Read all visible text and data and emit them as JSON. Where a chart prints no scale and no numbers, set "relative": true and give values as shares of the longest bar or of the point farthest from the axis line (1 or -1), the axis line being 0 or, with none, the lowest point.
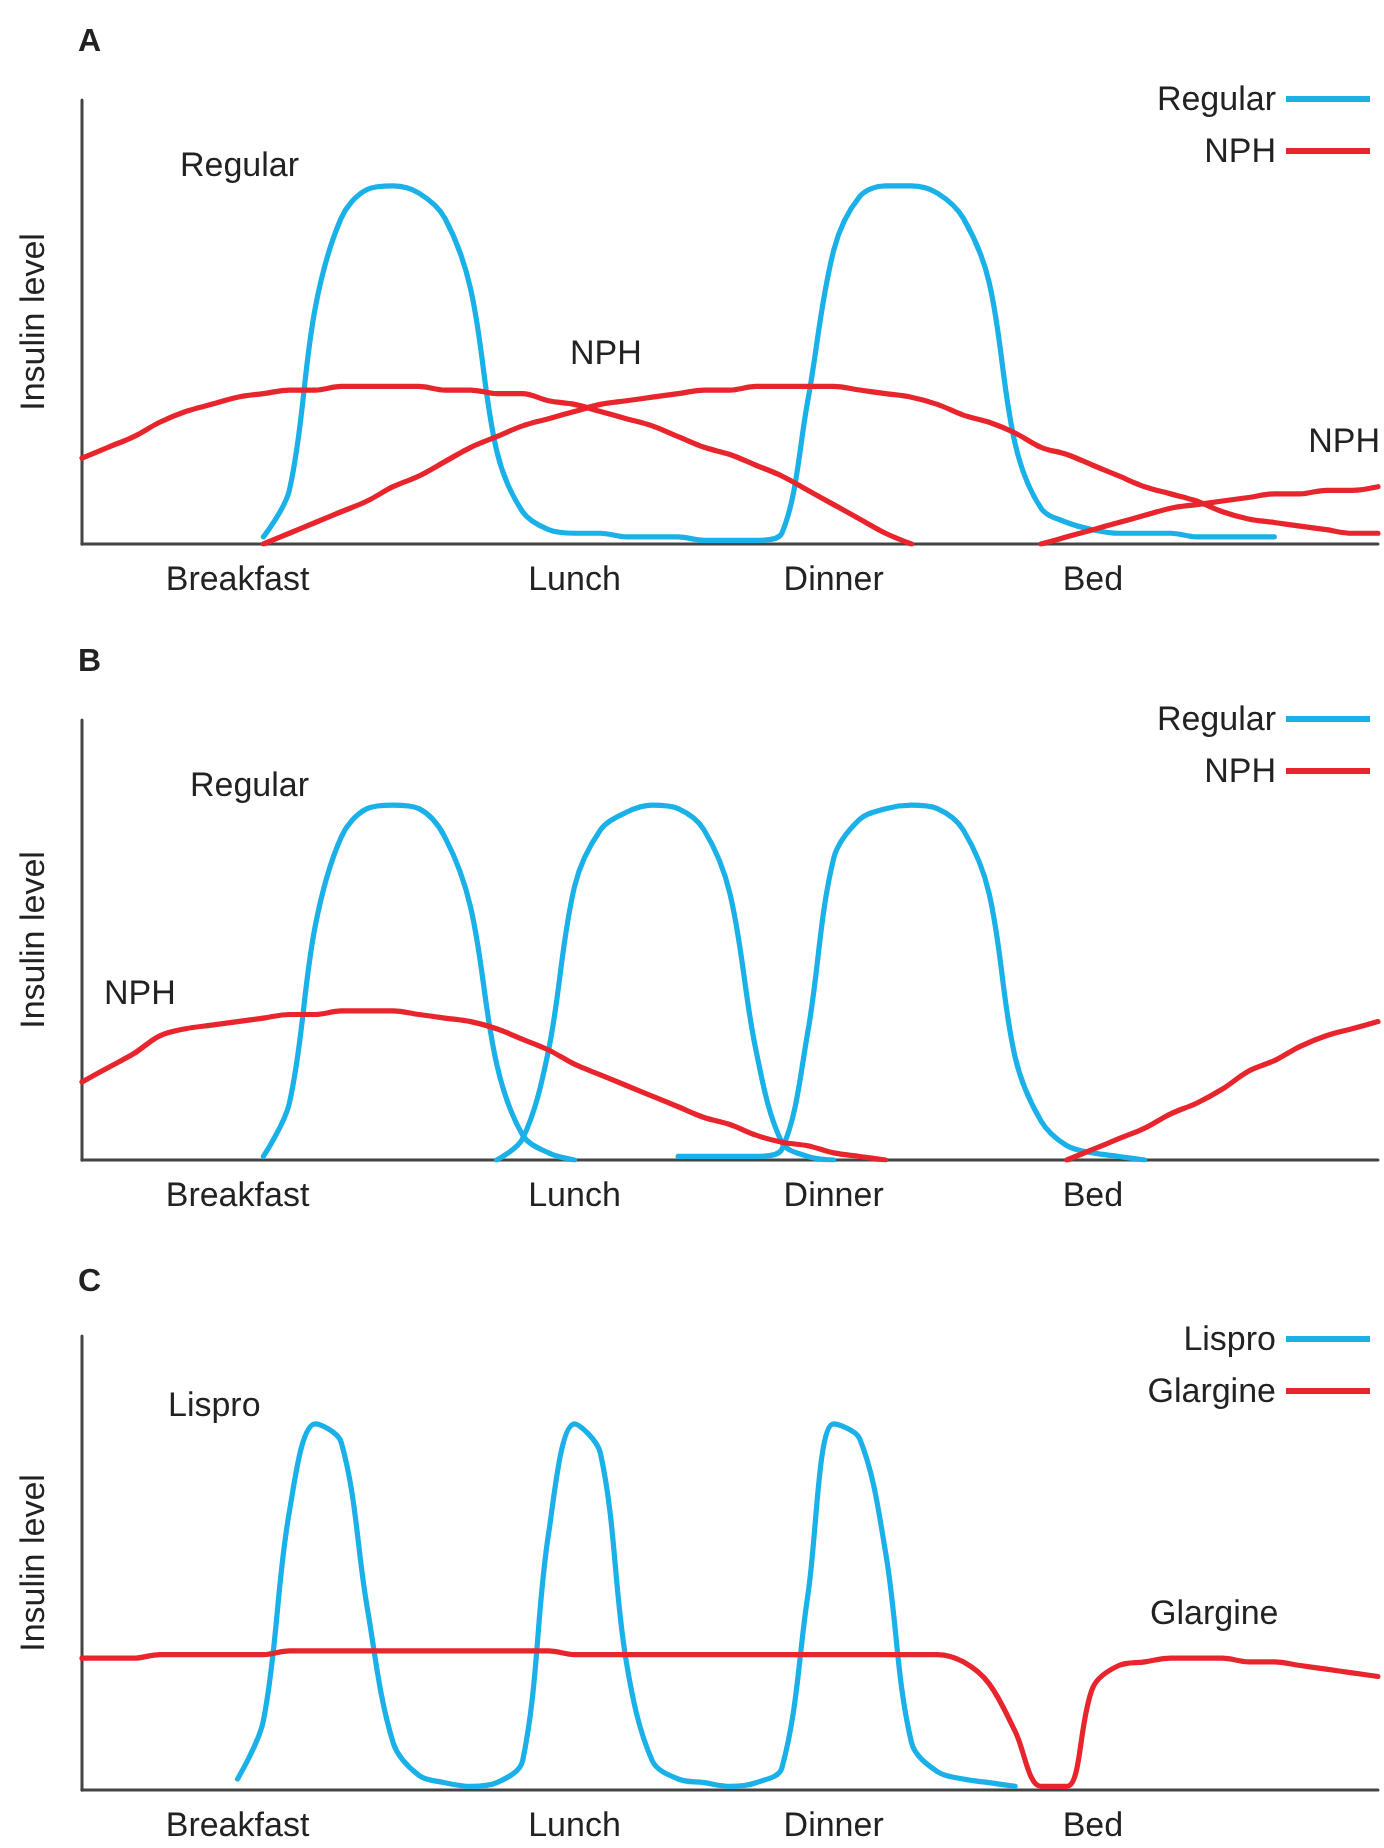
{
  "chart_data": [
    {
      "type": "line",
      "title": "A",
      "ylabel": "Insulin level",
      "relative": true,
      "legend": "top right",
      "marker": "none",
      "categories": [
        null,
        null,
        null,
        null,
        null,
        null,
        "Breakfast",
        null,
        null,
        null,
        null,
        null,
        null,
        null,
        null,
        null,
        null,
        null,
        null,
        "Lunch",
        null,
        null,
        null,
        null,
        null,
        null,
        null,
        null,
        null,
        "Dinner",
        null,
        null,
        null,
        null,
        null,
        null,
        null,
        null,
        null,
        "Bed",
        null,
        null,
        null,
        null,
        null,
        null,
        null,
        null,
        null,
        null,
        null
      ],
      "annotations": [
        "Regular",
        "NPH",
        "NPH"
      ],
      "series": [
        {
          "name": "Regular",
          "color": "#1ab0e8",
          "values": [
            null,
            null,
            null,
            null,
            null,
            null,
            null,
            0.02,
            0.15,
            0.66,
            0.91,
            0.99,
            1,
            0.98,
            0.91,
            0.71,
            0.26,
            0.09,
            0.04,
            0.03,
            0.03,
            0.02,
            0.02,
            0.02,
            0.01,
            0.01,
            0.01,
            0.03,
            0.4,
            0.82,
            0.97,
            1,
            1,
            0.98,
            0.91,
            0.73,
            0.28,
            0.1,
            0.06,
            0.04,
            0.03,
            0.03,
            0.03,
            0.02,
            0.02,
            0.02,
            0.02,
            null,
            null,
            null,
            null
          ]
        },
        {
          "name": "NPH",
          "color": "#e8252c",
          "values": [
            0.24,
            0.27,
            0.3,
            0.34,
            0.37,
            0.39,
            0.41,
            0.42,
            0.43,
            0.43,
            0.44,
            0.44,
            0.44,
            0.44,
            0.43,
            0.43,
            0.42,
            0.42,
            0.4,
            0.39,
            0.37,
            0.35,
            0.33,
            0.3,
            0.27,
            0.25,
            0.22,
            0.19,
            0.15,
            0.11,
            0.07,
            0.03,
            0,
            null,
            null,
            null,
            null,
            null,
            null,
            null,
            null,
            null,
            null,
            null,
            null,
            null,
            null,
            null,
            null,
            null,
            null
          ]
        },
        {
          "color": "#e8252c",
          "values": [
            null,
            null,
            null,
            null,
            null,
            null,
            null,
            0,
            0.03,
            0.06,
            0.09,
            0.12,
            0.16,
            0.19,
            0.23,
            0.27,
            0.3,
            0.33,
            0.35,
            0.37,
            0.39,
            0.4,
            0.41,
            0.42,
            0.43,
            0.43,
            0.44,
            0.44,
            0.44,
            0.44,
            0.43,
            0.42,
            0.41,
            0.39,
            0.36,
            0.34,
            0.31,
            0.27,
            0.25,
            0.22,
            0.19,
            0.16,
            0.14,
            0.12,
            0.09,
            0.07,
            0.06,
            0.05,
            0.04,
            0.03,
            0.03
          ]
        },
        {
          "color": "#e8252c",
          "values": [
            null,
            null,
            null,
            null,
            null,
            null,
            null,
            null,
            null,
            null,
            null,
            null,
            null,
            null,
            null,
            null,
            null,
            null,
            null,
            null,
            null,
            null,
            null,
            null,
            null,
            null,
            null,
            null,
            null,
            null,
            null,
            null,
            null,
            null,
            null,
            null,
            null,
            0,
            0.02,
            0.04,
            0.06,
            0.08,
            0.1,
            0.11,
            0.12,
            0.13,
            0.14,
            0.14,
            0.15,
            0.15,
            0.16
          ]
        }
      ]
    },
    {
      "type": "line",
      "title": "B",
      "ylabel": "Insulin level",
      "relative": true,
      "legend": "top right",
      "marker": "none",
      "categories": [
        null,
        null,
        null,
        null,
        null,
        null,
        "Breakfast",
        null,
        null,
        null,
        null,
        null,
        null,
        null,
        null,
        null,
        null,
        null,
        null,
        "Lunch",
        null,
        null,
        null,
        null,
        null,
        null,
        null,
        null,
        null,
        "Dinner",
        null,
        null,
        null,
        null,
        null,
        null,
        null,
        null,
        null,
        "Bed",
        null,
        null,
        null,
        null,
        null,
        null,
        null,
        null,
        null,
        null,
        null
      ],
      "annotations": [
        "Regular",
        "NPH"
      ],
      "series": [
        {
          "name": "Regular",
          "color": "#1ab0e8",
          "values": [
            null,
            null,
            null,
            null,
            null,
            null,
            null,
            0.01,
            0.16,
            0.66,
            0.91,
            0.99,
            1,
            0.99,
            0.91,
            0.71,
            0.27,
            0.07,
            0.02,
            0,
            null,
            null,
            null,
            0.01,
            0.01,
            0.01,
            0.01,
            0.03,
            0.36,
            0.85,
            0.96,
            0.99,
            1,
            0.99,
            0.93,
            0.75,
            0.29,
            0.11,
            0.04,
            0.02,
            0.01,
            0,
            null,
            null,
            null,
            null,
            null,
            null,
            null,
            null,
            null
          ]
        },
        {
          "color": "#1ab0e8",
          "values": [
            null,
            null,
            null,
            null,
            null,
            null,
            null,
            null,
            null,
            null,
            null,
            null,
            null,
            null,
            null,
            null,
            0,
            0.06,
            0.31,
            0.77,
            0.93,
            0.98,
            1,
            0.99,
            0.93,
            0.75,
            0.31,
            0.05,
            0.01,
            0,
            null,
            null,
            null,
            null,
            null,
            null,
            null,
            null,
            null,
            null,
            null,
            null,
            null,
            null,
            null,
            null,
            null,
            null,
            null,
            null,
            null
          ]
        },
        {
          "name": "NPH",
          "color": "#e8252c",
          "values": [
            0.22,
            0.26,
            0.3,
            0.35,
            0.37,
            0.38,
            0.39,
            0.4,
            0.41,
            0.41,
            0.42,
            0.42,
            0.42,
            0.41,
            0.4,
            0.39,
            0.37,
            0.34,
            0.31,
            0.27,
            0.24,
            0.21,
            0.18,
            0.15,
            0.12,
            0.1,
            0.07,
            0.05,
            0.04,
            0.02,
            0.01,
            0,
            null,
            null,
            null,
            null,
            null,
            null,
            0,
            0.03,
            0.06,
            0.09,
            0.13,
            0.16,
            0.2,
            0.25,
            0.28,
            0.32,
            0.35,
            0.37,
            0.39
          ]
        }
      ]
    },
    {
      "type": "line",
      "title": "C",
      "ylabel": "Insulin level",
      "relative": true,
      "legend": "top right",
      "marker": "none",
      "categories": [
        null,
        null,
        null,
        null,
        null,
        null,
        "Breakfast",
        null,
        null,
        null,
        null,
        null,
        null,
        null,
        null,
        null,
        null,
        null,
        null,
        "Lunch",
        null,
        null,
        null,
        null,
        null,
        null,
        null,
        null,
        null,
        "Dinner",
        null,
        null,
        null,
        null,
        null,
        null,
        null,
        null,
        null,
        "Bed",
        null,
        null,
        null,
        null,
        null,
        null,
        null,
        null,
        null,
        null,
        null
      ],
      "annotations": [
        "Lispro",
        "Glargine"
      ],
      "series": [
        {
          "name": "Lispro",
          "color": "#1ab0e8",
          "values": [
            null,
            null,
            null,
            null,
            null,
            null,
            0.03,
            0.19,
            0.76,
            1,
            0.95,
            0.5,
            0.13,
            0.04,
            0.02,
            0.01,
            0.02,
            0.08,
            0.7,
            1,
            0.92,
            0.35,
            0.08,
            0.03,
            0.02,
            0.01,
            0.02,
            0.06,
            0.53,
            1,
            0.96,
            0.65,
            0.13,
            0.05,
            0.03,
            0.02,
            0.01,
            null,
            null,
            null,
            null,
            null,
            null,
            null,
            null,
            null,
            null,
            null,
            null,
            null,
            null
          ]
        },
        {
          "name": "Glargine",
          "color": "#e8252c",
          "values": [
            0.36,
            0.36,
            0.36,
            0.37,
            0.37,
            0.37,
            0.37,
            0.37,
            0.38,
            0.38,
            0.38,
            0.38,
            0.38,
            0.38,
            0.38,
            0.38,
            0.38,
            0.38,
            0.38,
            0.37,
            0.37,
            0.37,
            0.37,
            0.37,
            0.37,
            0.37,
            0.37,
            0.37,
            0.37,
            0.37,
            0.37,
            0.37,
            0.37,
            0.37,
            0.35,
            0.29,
            0.16,
            0.01,
            0.01,
            0.28,
            0.34,
            0.35,
            0.36,
            0.36,
            0.36,
            0.35,
            0.35,
            0.34,
            0.33,
            0.32,
            0.31
          ]
        }
      ]
    }
  ]
}
